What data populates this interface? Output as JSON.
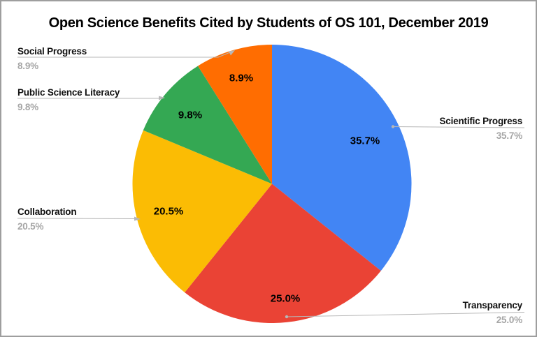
{
  "title": "Open Science Benefits Cited by Students of OS 101, December 2019",
  "chart_data": {
    "type": "pie",
    "title": "Open Science Benefits Cited by Students of OS 101, December 2019",
    "categories": [
      "Scientific Progress",
      "Transparency",
      "Collaboration",
      "Public Science Literacy",
      "Social Progress"
    ],
    "values": [
      35.7,
      25.0,
      20.5,
      9.8,
      8.9
    ],
    "unit": "%",
    "colors": [
      "#4285F4",
      "#EA4335",
      "#FBBC04",
      "#34A853",
      "#FF6D01"
    ],
    "start_angle_deg": 0,
    "direction": "clockwise",
    "slice_labels": [
      "35.7%",
      "25.0%",
      "20.5%",
      "9.8%",
      "8.9%"
    ],
    "legend_position": "outside-callouts",
    "grid": false
  },
  "callouts": [
    {
      "id": "scientific-progress",
      "label": "Scientific Progress",
      "value": "35.7%"
    },
    {
      "id": "transparency",
      "label": "Transparency",
      "value": "25.0%"
    },
    {
      "id": "collaboration",
      "label": "Collaboration",
      "value": "20.5%"
    },
    {
      "id": "public-science-literacy",
      "label": "Public Science Literacy",
      "value": "9.8%"
    },
    {
      "id": "social-progress",
      "label": "Social Progress",
      "value": "8.9%"
    }
  ],
  "colors": {
    "label_text": "#111111",
    "value_text": "#a6a6a6",
    "leader_line": "#b7b7b7",
    "border": "#9e9e9e",
    "background": "#ffffff"
  }
}
